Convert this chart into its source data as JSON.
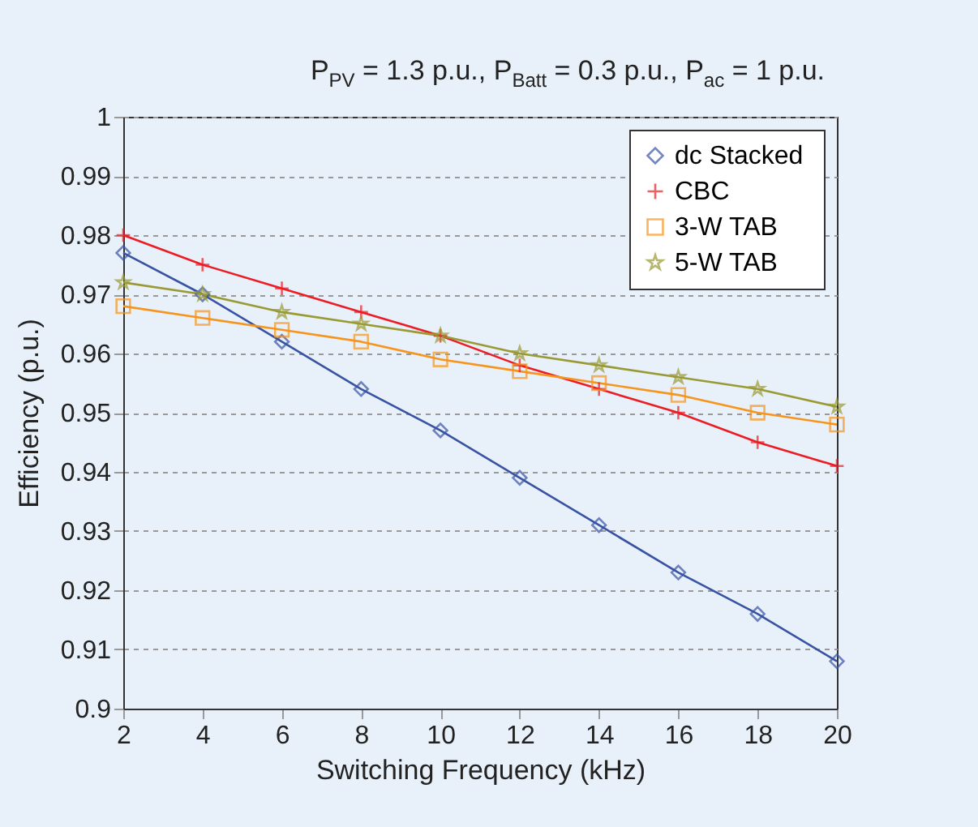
{
  "chart_data": {
    "type": "line",
    "title": "P$_{PV}$ = 1.3 p.u., P$_{Batt}$ = 0.3 p.u., P$_{ac}$ = 1 p.u.",
    "xlabel": "Switching Frequency (kHz)",
    "ylabel": "Efficiency (p.u.)",
    "x": [
      2,
      4,
      6,
      8,
      10,
      12,
      14,
      16,
      18,
      20
    ],
    "series": [
      {
        "name": "dc  Stacked",
        "color": "#3953a4",
        "marker": "diamond",
        "values": [
          0.977,
          0.97,
          0.962,
          0.954,
          0.947,
          0.939,
          0.931,
          0.923,
          0.916,
          0.908
        ]
      },
      {
        "name": "CBC",
        "color": "#ed1c24",
        "marker": "cross",
        "values": [
          0.98,
          0.975,
          0.971,
          0.967,
          0.963,
          0.958,
          0.954,
          0.95,
          0.945,
          0.941
        ]
      },
      {
        "name": "3-W TAB",
        "color": "#f7941d",
        "marker": "square",
        "values": [
          0.968,
          0.966,
          0.964,
          0.962,
          0.959,
          0.957,
          0.955,
          0.953,
          0.95,
          0.948
        ]
      },
      {
        "name": "5-W TAB",
        "color": "#9a9a34",
        "marker": "star",
        "values": [
          0.972,
          0.97,
          0.967,
          0.965,
          0.963,
          0.96,
          0.958,
          0.956,
          0.954,
          0.951
        ]
      }
    ],
    "xlim": [
      2,
      20
    ],
    "xticks": [
      2,
      4,
      6,
      8,
      10,
      12,
      14,
      16,
      18,
      20
    ],
    "ylim": [
      0.9,
      1
    ],
    "yticks": [
      0.9,
      0.91,
      0.92,
      0.93,
      0.94,
      0.95,
      0.96,
      0.97,
      0.98,
      0.99,
      1
    ],
    "grid": "y",
    "legend": "top right",
    "line_style": "solid"
  }
}
